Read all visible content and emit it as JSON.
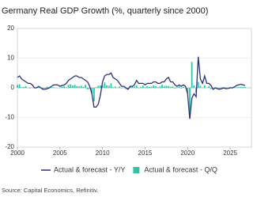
{
  "chart_data": {
    "type": "line-bar",
    "title": "Germany Real GDP Growth (%, quarterly since 2000)",
    "source": "Source: Capital Economics, Refinitiv.",
    "x": [
      2000,
      2000.25,
      2000.5,
      2000.75,
      2001,
      2001.25,
      2001.5,
      2001.75,
      2002,
      2002.25,
      2002.5,
      2002.75,
      2003,
      2003.25,
      2003.5,
      2003.75,
      2004,
      2004.25,
      2004.5,
      2004.75,
      2005,
      2005.25,
      2005.5,
      2005.75,
      2006,
      2006.25,
      2006.5,
      2006.75,
      2007,
      2007.25,
      2007.5,
      2007.75,
      2008,
      2008.25,
      2008.5,
      2008.75,
      2009,
      2009.25,
      2009.5,
      2009.75,
      2010,
      2010.25,
      2010.5,
      2010.75,
      2011,
      2011.25,
      2011.5,
      2011.75,
      2012,
      2012.25,
      2012.5,
      2012.75,
      2013,
      2013.25,
      2013.5,
      2013.75,
      2014,
      2014.25,
      2014.5,
      2014.75,
      2015,
      2015.25,
      2015.5,
      2015.75,
      2016,
      2016.25,
      2016.5,
      2016.75,
      2017,
      2017.25,
      2017.5,
      2017.75,
      2018,
      2018.25,
      2018.5,
      2018.75,
      2019,
      2019.25,
      2019.5,
      2019.75,
      2020,
      2020.25,
      2020.5,
      2020.75,
      2021,
      2021.25,
      2021.5,
      2021.75,
      2022,
      2022.25,
      2022.5,
      2022.75,
      2023,
      2023.25,
      2023.5,
      2023.75,
      2024,
      2024.25,
      2024.5,
      2024.75,
      2025,
      2025.25,
      2025.5,
      2025.75,
      2026,
      2026.25,
      2026.5,
      2026.75
    ],
    "series": [
      {
        "name": "Actual & forecast - Y/Y",
        "kind": "line",
        "color": "#2b2f7a",
        "values": [
          3.5,
          4.0,
          3.0,
          2.5,
          2.0,
          1.5,
          1.5,
          1.0,
          0.0,
          0.0,
          0.5,
          0.0,
          -0.5,
          -0.5,
          -0.3,
          0.0,
          0.5,
          1.0,
          1.0,
          1.0,
          0.5,
          0.8,
          1.0,
          1.5,
          2.5,
          3.0,
          3.5,
          4.0,
          4.0,
          3.5,
          3.5,
          3.0,
          2.5,
          2.0,
          0.5,
          -2.0,
          -6.5,
          -6.5,
          -5.5,
          -2.5,
          2.0,
          4.0,
          4.5,
          4.5,
          5.0,
          3.5,
          3.0,
          2.5,
          1.5,
          0.5,
          0.5,
          0.0,
          -0.5,
          0.5,
          0.5,
          1.0,
          2.5,
          1.5,
          1.5,
          1.5,
          1.0,
          1.5,
          1.5,
          1.5,
          2.0,
          2.0,
          1.5,
          1.5,
          2.0,
          2.0,
          3.0,
          3.5,
          2.0,
          2.0,
          1.0,
          0.5,
          1.0,
          0.5,
          1.0,
          0.5,
          -2.0,
          -10.5,
          -3.5,
          -2.0,
          -3.0,
          10.5,
          3.0,
          1.5,
          4.0,
          1.5,
          1.5,
          0.8,
          -0.5,
          0.0,
          -0.3,
          -0.5,
          -0.3,
          0.0,
          -0.3,
          -0.2,
          0.0,
          0.0,
          0.3,
          0.8,
          1.0,
          1.2,
          1.0,
          0.8
        ]
      },
      {
        "name": "Actual & forecast - Q/Q",
        "kind": "bar",
        "color": "#2ec4a0",
        "values": [
          1.0,
          1.2,
          0.2,
          0.3,
          0.5,
          0.0,
          -0.2,
          0.0,
          0.0,
          0.3,
          0.2,
          -0.2,
          -0.4,
          -0.2,
          0.4,
          0.2,
          0.2,
          0.2,
          0.0,
          0.0,
          0.1,
          0.4,
          0.6,
          0.2,
          1.0,
          1.2,
          0.8,
          1.0,
          0.6,
          0.5,
          0.7,
          0.3,
          1.0,
          -0.5,
          -0.4,
          -1.8,
          -4.5,
          0.2,
          0.7,
          0.8,
          0.8,
          1.8,
          0.8,
          0.7,
          1.5,
          0.2,
          0.4,
          0.0,
          0.4,
          -0.1,
          0.1,
          -0.4,
          -0.3,
          0.7,
          0.4,
          0.4,
          0.8,
          -0.1,
          0.3,
          0.8,
          0.2,
          0.5,
          0.3,
          0.4,
          0.8,
          0.5,
          0.2,
          0.4,
          1.0,
          0.6,
          0.7,
          0.6,
          0.3,
          0.5,
          -0.2,
          0.2,
          0.5,
          -0.2,
          0.3,
          0.0,
          -1.8,
          -9.7,
          8.7,
          0.8,
          -1.7,
          2.0,
          0.7,
          0.0,
          0.9,
          0.0,
          0.5,
          -0.4,
          0.0,
          0.1,
          -0.1,
          -0.4,
          0.2,
          -0.3,
          0.1,
          -0.2,
          0.3,
          -0.2,
          0.0,
          0.2,
          0.3,
          0.3,
          0.3,
          0.3
        ]
      }
    ],
    "xlim": [
      2000,
      2027.5
    ],
    "xticks": [
      2000,
      2005,
      2010,
      2015,
      2020,
      2025
    ],
    "ylim": [
      -20,
      20
    ],
    "yticks": [
      -20,
      -10,
      0,
      10,
      20
    ],
    "grid": true
  }
}
